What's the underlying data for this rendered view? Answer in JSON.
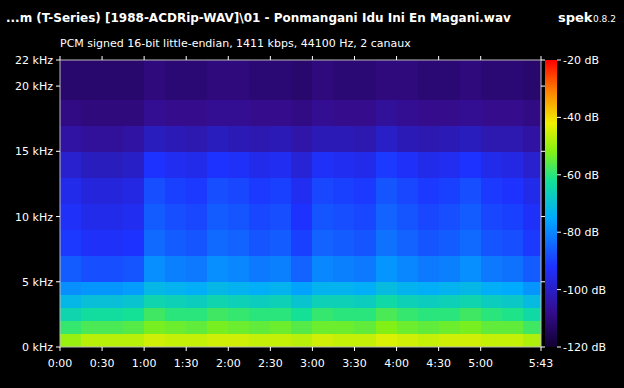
{
  "chart_data": {
    "type": "heatmap",
    "title": "...m (T-Series) [1988-ACDRip-WAV]\\01 - Ponmangani Idu Ini En Magani.wav",
    "subtitle": "PCM signed 16-bit little-endian, 1411 kbps, 44100 Hz, 2 canaux",
    "annotations": [
      "spek",
      "0.8.2"
    ],
    "xlim": [
      0,
      343
    ],
    "ylim": [
      0,
      22
    ],
    "xticks": [
      {
        "value": 0,
        "label": "0:00"
      },
      {
        "value": 30,
        "label": "0:30"
      },
      {
        "value": 60,
        "label": "1:00"
      },
      {
        "value": 90,
        "label": "1:30"
      },
      {
        "value": 120,
        "label": "2:00"
      },
      {
        "value": 150,
        "label": "2:30"
      },
      {
        "value": 180,
        "label": "3:00"
      },
      {
        "value": 210,
        "label": "3:30"
      },
      {
        "value": 240,
        "label": "4:00"
      },
      {
        "value": 270,
        "label": "4:30"
      },
      {
        "value": 300,
        "label": "5:00"
      },
      {
        "value": 343,
        "label": "5:43"
      }
    ],
    "yticks": [
      {
        "value": 0,
        "label": "0 kHz"
      },
      {
        "value": 5,
        "label": "5 kHz"
      },
      {
        "value": 10,
        "label": "10 kHz"
      },
      {
        "value": 15,
        "label": "15 kHz"
      },
      {
        "value": 20,
        "label": "20 kHz"
      },
      {
        "value": 22,
        "label": "22 kHz"
      }
    ],
    "x_bins": [
      0,
      15,
      30,
      45,
      60,
      75,
      90,
      105,
      120,
      135,
      150,
      165,
      180,
      195,
      210,
      225,
      240,
      255,
      270,
      285,
      300,
      315,
      330,
      343
    ],
    "y_bins": [
      0,
      1,
      2,
      3,
      4,
      5,
      7,
      9,
      11,
      13,
      15,
      17,
      19,
      22
    ],
    "cells": [
      [
        -50,
        -47,
        -47,
        -47,
        -45,
        -46,
        -46,
        -45,
        -45,
        -46,
        -46,
        -47,
        -45,
        -46,
        -46,
        -44,
        -45,
        -46,
        -45,
        -45,
        -46,
        -46,
        -48
      ],
      [
        -59,
        -57,
        -57,
        -56,
        -53,
        -54,
        -55,
        -53,
        -54,
        -55,
        -54,
        -56,
        -54,
        -54,
        -55,
        -52,
        -54,
        -55,
        -54,
        -53,
        -55,
        -55,
        -58
      ],
      [
        -65,
        -63,
        -63,
        -62,
        -58,
        -60,
        -60,
        -58,
        -59,
        -60,
        -60,
        -62,
        -59,
        -60,
        -60,
        -57,
        -59,
        -60,
        -60,
        -58,
        -60,
        -61,
        -64
      ],
      [
        -72,
        -70,
        -70,
        -69,
        -65,
        -66,
        -67,
        -65,
        -66,
        -67,
        -66,
        -69,
        -66,
        -66,
        -67,
        -64,
        -66,
        -67,
        -66,
        -65,
        -67,
        -68,
        -71
      ],
      [
        -79,
        -78,
        -78,
        -77,
        -72,
        -73,
        -74,
        -72,
        -73,
        -74,
        -73,
        -76,
        -73,
        -73,
        -74,
        -71,
        -73,
        -74,
        -73,
        -72,
        -74,
        -75,
        -78
      ],
      [
        -86,
        -88,
        -88,
        -87,
        -79,
        -81,
        -82,
        -79,
        -80,
        -82,
        -81,
        -85,
        -80,
        -81,
        -82,
        -78,
        -80,
        -82,
        -81,
        -79,
        -82,
        -83,
        -86
      ],
      [
        -91,
        -93,
        -93,
        -92,
        -84,
        -86,
        -87,
        -84,
        -85,
        -87,
        -86,
        -90,
        -85,
        -86,
        -87,
        -83,
        -85,
        -87,
        -86,
        -84,
        -87,
        -88,
        -91
      ],
      [
        -93,
        -95,
        -95,
        -94,
        -86,
        -88,
        -89,
        -86,
        -87,
        -89,
        -88,
        -92,
        -87,
        -88,
        -89,
        -85,
        -87,
        -89,
        -88,
        -86,
        -89,
        -90,
        -93
      ],
      [
        -95,
        -97,
        -97,
        -96,
        -88,
        -90,
        -91,
        -88,
        -89,
        -91,
        -90,
        -94,
        -89,
        -90,
        -91,
        -87,
        -89,
        -91,
        -90,
        -88,
        -91,
        -92,
        -95
      ],
      [
        -99,
        -101,
        -101,
        -100,
        -92,
        -94,
        -95,
        -92,
        -93,
        -95,
        -94,
        -98,
        -93,
        -94,
        -95,
        -91,
        -93,
        -95,
        -94,
        -92,
        -95,
        -96,
        -99
      ],
      [
        -105,
        -106,
        -106,
        -105,
        -101,
        -102,
        -103,
        -101,
        -102,
        -103,
        -102,
        -104,
        -102,
        -102,
        -103,
        -100,
        -102,
        -103,
        -102,
        -101,
        -103,
        -103,
        -105
      ],
      [
        -109,
        -110,
        -110,
        -110,
        -107,
        -108,
        -108,
        -107,
        -107,
        -108,
        -108,
        -109,
        -107,
        -108,
        -108,
        -106,
        -107,
        -108,
        -108,
        -107,
        -108,
        -108,
        -109
      ],
      [
        -112,
        -112,
        -112,
        -112,
        -110,
        -111,
        -111,
        -110,
        -110,
        -111,
        -111,
        -112,
        -110,
        -111,
        -111,
        -110,
        -110,
        -111,
        -111,
        -110,
        -111,
        -111,
        -112
      ]
    ],
    "colorbar": {
      "range": [
        -120,
        -20
      ],
      "ticks": [
        {
          "value": -20,
          "label": "-20 dB"
        },
        {
          "value": -40,
          "label": "-40 dB"
        },
        {
          "value": -60,
          "label": "-60 dB"
        },
        {
          "value": -80,
          "label": "-80 dB"
        },
        {
          "value": -100,
          "label": "-100 dB"
        },
        {
          "value": -120,
          "label": "-120 dB"
        }
      ]
    }
  }
}
